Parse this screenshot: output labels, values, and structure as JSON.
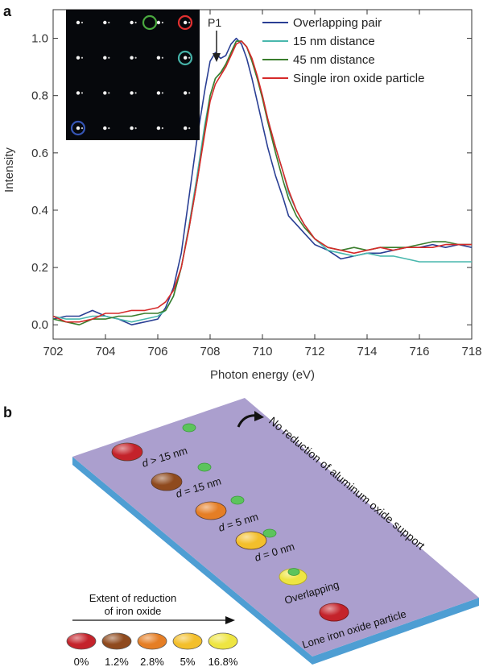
{
  "panel_a": {
    "label": "a",
    "annotation": "P1",
    "inset": {
      "rows": 4,
      "cols": 5
    }
  },
  "panel_b": {
    "label": "b",
    "no_reduction_text": "No reduction of aluminum oxide support",
    "pair_labels": [
      {
        "prefix": "d",
        "rest": " > 15 nm"
      },
      {
        "prefix": "d",
        "rest": " = 15 nm"
      },
      {
        "prefix": "d",
        "rest": " = 5 nm"
      },
      {
        "prefix": "d",
        "rest": " = 0 nm"
      }
    ],
    "overlapping_label": "Overlapping",
    "lone_label": "Lone iron oxide particle",
    "legend_title_line1": "Extent of reduction",
    "legend_title_line2": "of iron oxide",
    "legend_values": [
      "0%",
      "1.2%",
      "2.8%",
      "5%",
      "16.8%"
    ],
    "colors": {
      "plate_top": "#ab9fce",
      "plate_side": "#4e9ed3",
      "support_particle": "#5cc45c",
      "scale": [
        "#c4232b",
        "#8f4a1e",
        "#e57e25",
        "#f3bf2b",
        "#eee542"
      ]
    }
  },
  "chart_data": {
    "type": "line",
    "title": "",
    "xlabel": "Photon energy (eV)",
    "ylabel": "Intensity",
    "xlim": [
      702,
      718
    ],
    "ylim": [
      -0.05,
      1.1
    ],
    "x_ticks": [
      "702",
      "704",
      "706",
      "708",
      "710",
      "712",
      "714",
      "716",
      "718"
    ],
    "y_ticks": [
      "0.0",
      "0.2",
      "0.4",
      "0.6",
      "0.8",
      "1.0"
    ],
    "grid": false,
    "legend_position": "top-right",
    "series": [
      {
        "name": "Overlapping pair",
        "color": "#2a3f94",
        "x": [
          702,
          702.5,
          703,
          703.5,
          704,
          704.5,
          705,
          705.5,
          706,
          706.3,
          706.6,
          706.9,
          707.2,
          707.5,
          707.8,
          708,
          708.2,
          708.4,
          708.6,
          708.8,
          709,
          709.2,
          709.4,
          709.6,
          709.8,
          710,
          710.2,
          710.5,
          710.8,
          711,
          711.3,
          711.6,
          712,
          712.5,
          713,
          713.5,
          714,
          714.5,
          715,
          715.5,
          716,
          716.5,
          717,
          717.5,
          718
        ],
        "y": [
          0.02,
          0.03,
          0.03,
          0.05,
          0.03,
          0.02,
          0.0,
          0.01,
          0.02,
          0.06,
          0.13,
          0.25,
          0.45,
          0.65,
          0.82,
          0.92,
          0.95,
          0.93,
          0.94,
          0.98,
          1.0,
          0.98,
          0.93,
          0.86,
          0.78,
          0.7,
          0.62,
          0.52,
          0.44,
          0.38,
          0.35,
          0.32,
          0.28,
          0.26,
          0.23,
          0.24,
          0.25,
          0.25,
          0.26,
          0.27,
          0.27,
          0.28,
          0.27,
          0.28,
          0.27
        ]
      },
      {
        "name": "15 nm distance",
        "color": "#49b7ad",
        "x": [
          702,
          702.5,
          703,
          703.5,
          704,
          704.5,
          705,
          705.5,
          706,
          706.3,
          706.6,
          706.9,
          707.2,
          707.5,
          707.8,
          708,
          708.2,
          708.4,
          708.6,
          708.8,
          709,
          709.2,
          709.4,
          709.6,
          709.8,
          710,
          710.2,
          710.5,
          710.8,
          711,
          711.3,
          711.6,
          712,
          712.5,
          713,
          713.5,
          714,
          714.5,
          715,
          715.5,
          716,
          716.5,
          717,
          717.5,
          718
        ],
        "y": [
          0.03,
          0.02,
          0.02,
          0.03,
          0.03,
          0.02,
          0.01,
          0.02,
          0.03,
          0.05,
          0.1,
          0.2,
          0.35,
          0.52,
          0.7,
          0.8,
          0.86,
          0.88,
          0.9,
          0.95,
          0.99,
          0.99,
          0.97,
          0.92,
          0.86,
          0.8,
          0.72,
          0.62,
          0.53,
          0.46,
          0.4,
          0.35,
          0.3,
          0.26,
          0.25,
          0.24,
          0.25,
          0.24,
          0.24,
          0.23,
          0.22,
          0.22,
          0.22,
          0.22,
          0.22
        ]
      },
      {
        "name": "45 nm distance",
        "color": "#3a7d2c",
        "x": [
          702,
          702.5,
          703,
          703.5,
          704,
          704.5,
          705,
          705.5,
          706,
          706.3,
          706.6,
          706.9,
          707.2,
          707.5,
          707.8,
          708,
          708.2,
          708.4,
          708.6,
          708.8,
          709,
          709.2,
          709.4,
          709.6,
          709.8,
          710,
          710.2,
          710.5,
          710.8,
          711,
          711.3,
          711.6,
          712,
          712.5,
          713,
          713.5,
          714,
          714.5,
          715,
          715.5,
          716,
          716.5,
          717,
          717.5,
          718
        ],
        "y": [
          0.02,
          0.01,
          0.0,
          0.02,
          0.02,
          0.03,
          0.03,
          0.04,
          0.04,
          0.05,
          0.1,
          0.2,
          0.34,
          0.5,
          0.68,
          0.8,
          0.86,
          0.88,
          0.91,
          0.95,
          0.99,
          0.99,
          0.97,
          0.92,
          0.86,
          0.79,
          0.71,
          0.6,
          0.5,
          0.44,
          0.38,
          0.34,
          0.3,
          0.27,
          0.26,
          0.27,
          0.26,
          0.27,
          0.27,
          0.27,
          0.28,
          0.29,
          0.29,
          0.28,
          0.28
        ]
      },
      {
        "name": "Single iron oxide particle",
        "color": "#d62a2a",
        "x": [
          702,
          702.5,
          703,
          703.5,
          704,
          704.5,
          705,
          705.5,
          706,
          706.3,
          706.6,
          706.9,
          707.2,
          707.5,
          707.8,
          708,
          708.2,
          708.4,
          708.6,
          708.8,
          709,
          709.2,
          709.4,
          709.6,
          709.8,
          710,
          710.2,
          710.5,
          710.8,
          711,
          711.3,
          711.6,
          712,
          712.5,
          713,
          713.5,
          714,
          714.5,
          715,
          715.5,
          716,
          716.5,
          717,
          717.5,
          718
        ],
        "y": [
          0.03,
          0.01,
          0.01,
          0.02,
          0.04,
          0.04,
          0.05,
          0.05,
          0.06,
          0.08,
          0.12,
          0.2,
          0.34,
          0.5,
          0.67,
          0.78,
          0.84,
          0.87,
          0.9,
          0.94,
          0.98,
          0.99,
          0.97,
          0.93,
          0.87,
          0.8,
          0.72,
          0.62,
          0.53,
          0.47,
          0.4,
          0.35,
          0.3,
          0.27,
          0.26,
          0.25,
          0.26,
          0.27,
          0.26,
          0.27,
          0.27,
          0.27,
          0.28,
          0.28,
          0.28
        ]
      }
    ]
  }
}
